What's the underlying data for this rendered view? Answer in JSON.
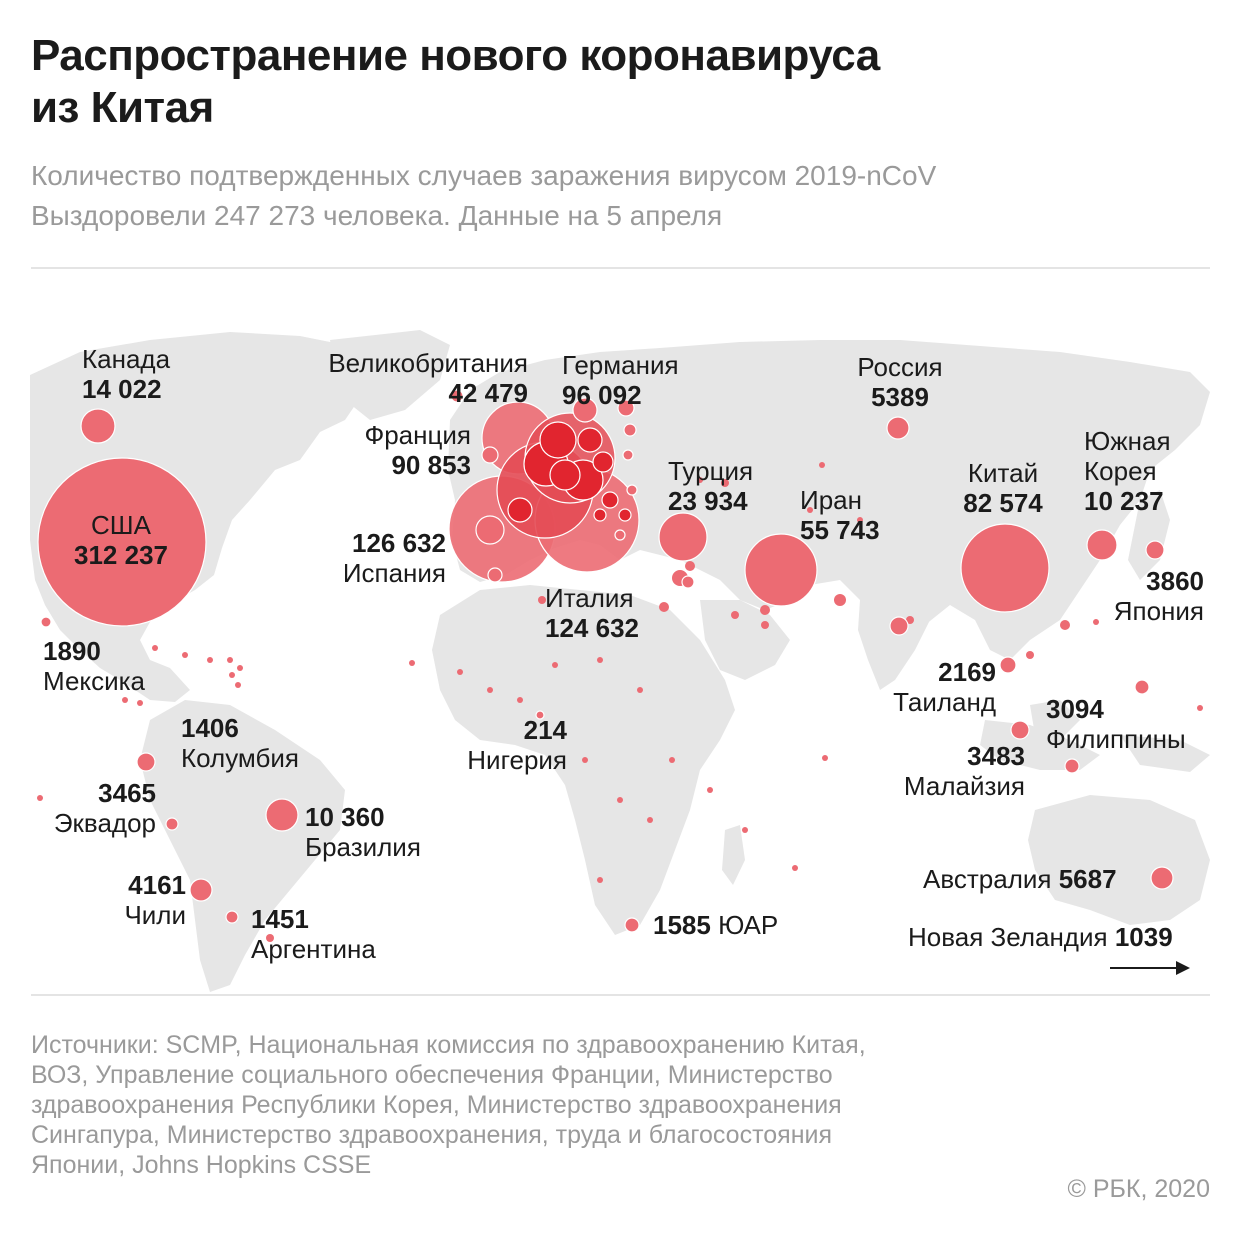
{
  "header": {
    "title_line1": "Распространение нового коронавируса",
    "title_line2": "из Китая",
    "subtitle_line1": "Количество подтвержденных случаев заражения вирусом 2019-nCoV",
    "subtitle_line2": "Выздоровели 247 273 человека. Данные на 5 апреля"
  },
  "colors": {
    "land": "#e6e6e6",
    "bubble": "#ec6b73",
    "bubble_dense": "#e1252f",
    "text": "#1b1b1b",
    "muted": "#9a9a9a"
  },
  "countries": {
    "usa": {
      "name": "США",
      "value": "312 237"
    },
    "canada": {
      "name": "Канада",
      "value": "14 022"
    },
    "mexico": {
      "name": "Мексика",
      "value": "1890"
    },
    "colombia": {
      "name": "Колумбия",
      "value": "1406"
    },
    "ecuador": {
      "name": "Эквадор",
      "value": "3465"
    },
    "brazil": {
      "name": "Бразилия",
      "value": "10 360"
    },
    "chile": {
      "name": "Чили",
      "value": "4161"
    },
    "argentina": {
      "name": "Аргентина",
      "value": "1451"
    },
    "uk": {
      "name": "Великобритания",
      "value": "42 479"
    },
    "germany": {
      "name": "Германия",
      "value": "96 092"
    },
    "france": {
      "name": "Франция",
      "value": "90 853"
    },
    "spain": {
      "name": "Испания",
      "value": "126 632"
    },
    "italy": {
      "name": "Италия",
      "value": "124 632"
    },
    "turkey": {
      "name": "Турция",
      "value": "23 934"
    },
    "iran": {
      "name": "Иран",
      "value": "55 743"
    },
    "russia": {
      "name": "Россия",
      "value": "5389"
    },
    "china": {
      "name": "Китай",
      "value": "82 574"
    },
    "south_korea": {
      "name_line1": "Южная",
      "name_line2": "Корея",
      "value": "10 237"
    },
    "japan": {
      "name": "Япония",
      "value": "3860"
    },
    "thailand": {
      "name": "Таиланд",
      "value": "2169"
    },
    "philippines": {
      "name": "Филиппины",
      "value": "3094"
    },
    "malaysia": {
      "name": "Малайзия",
      "value": "3483"
    },
    "nigeria": {
      "name": "Нигерия",
      "value": "214"
    },
    "south_africa": {
      "name": "ЮАР",
      "value": "1585"
    },
    "australia": {
      "name": "Австралия",
      "value": "5687"
    },
    "new_zealand": {
      "name": "Новая Зеландия",
      "value": "1039"
    }
  },
  "footer": {
    "sources_line1": "Источники: SCMP, Национальная комиссия по здравоохранению Китая,",
    "sources_line2": "ВОЗ, Управление социального обеспечения Франции, Министерство",
    "sources_line3": "здравоохранения Республики Корея, Министерство здравоохранения",
    "sources_line4": "Сингапура, Министерство здравоохранения, труда и благосостояния",
    "sources_line5": "Японии, Johns Hopkins CSSE",
    "copyright": "© РБК, 2020"
  }
}
